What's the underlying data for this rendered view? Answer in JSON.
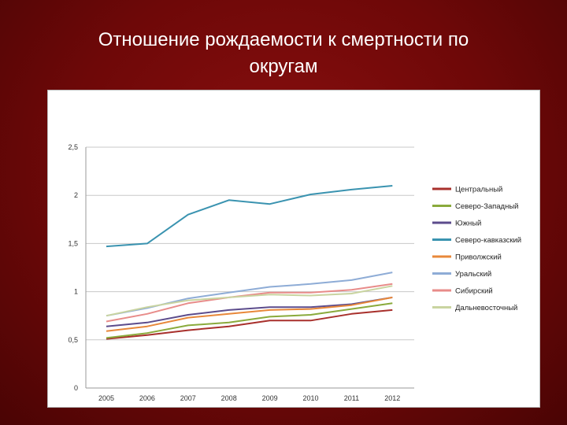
{
  "slide": {
    "title_line1": "Отношение рождаемости к смертности по",
    "title_line2": "округам"
  },
  "chart_data": {
    "type": "line",
    "title": "",
    "xlabel": "",
    "ylabel": "",
    "ylim": [
      0,
      2.5
    ],
    "y_ticks": [
      "0",
      "0,5",
      "1",
      "1,5",
      "2",
      "2,5"
    ],
    "categories": [
      "2005",
      "2006",
      "2007",
      "2008",
      "2009",
      "2010",
      "2011",
      "2012"
    ],
    "grid": "horizontal",
    "legend_position": "right",
    "series": [
      {
        "name": "Центральный",
        "color": "#a8302c",
        "values": [
          0.51,
          0.55,
          0.6,
          0.64,
          0.7,
          0.7,
          0.77,
          0.81
        ]
      },
      {
        "name": "Северо-Западный",
        "color": "#8aaa3c",
        "values": [
          0.52,
          0.57,
          0.65,
          0.68,
          0.74,
          0.76,
          0.82,
          0.88
        ]
      },
      {
        "name": "Южный",
        "color": "#5c4c8c",
        "values": [
          0.64,
          0.68,
          0.76,
          0.81,
          0.84,
          0.84,
          0.87,
          0.94
        ]
      },
      {
        "name": "Северо-кавказский",
        "color": "#3a93b0",
        "values": [
          1.47,
          1.5,
          1.8,
          1.95,
          1.91,
          2.01,
          2.06,
          2.1
        ]
      },
      {
        "name": "Приволжский",
        "color": "#e8883a",
        "values": [
          0.59,
          0.64,
          0.73,
          0.77,
          0.81,
          0.82,
          0.86,
          0.94
        ]
      },
      {
        "name": "Уральский",
        "color": "#8eacd6",
        "values": [
          0.75,
          0.83,
          0.93,
          0.99,
          1.05,
          1.08,
          1.12,
          1.2
        ]
      },
      {
        "name": "Сибирский",
        "color": "#e88c8a",
        "values": [
          0.69,
          0.77,
          0.88,
          0.94,
          0.99,
          0.99,
          1.02,
          1.08
        ]
      },
      {
        "name": "Дальневосточный",
        "color": "#c9d4a0",
        "values": [
          0.75,
          0.84,
          0.91,
          0.94,
          0.97,
          0.96,
          0.98,
          1.06
        ]
      }
    ]
  }
}
